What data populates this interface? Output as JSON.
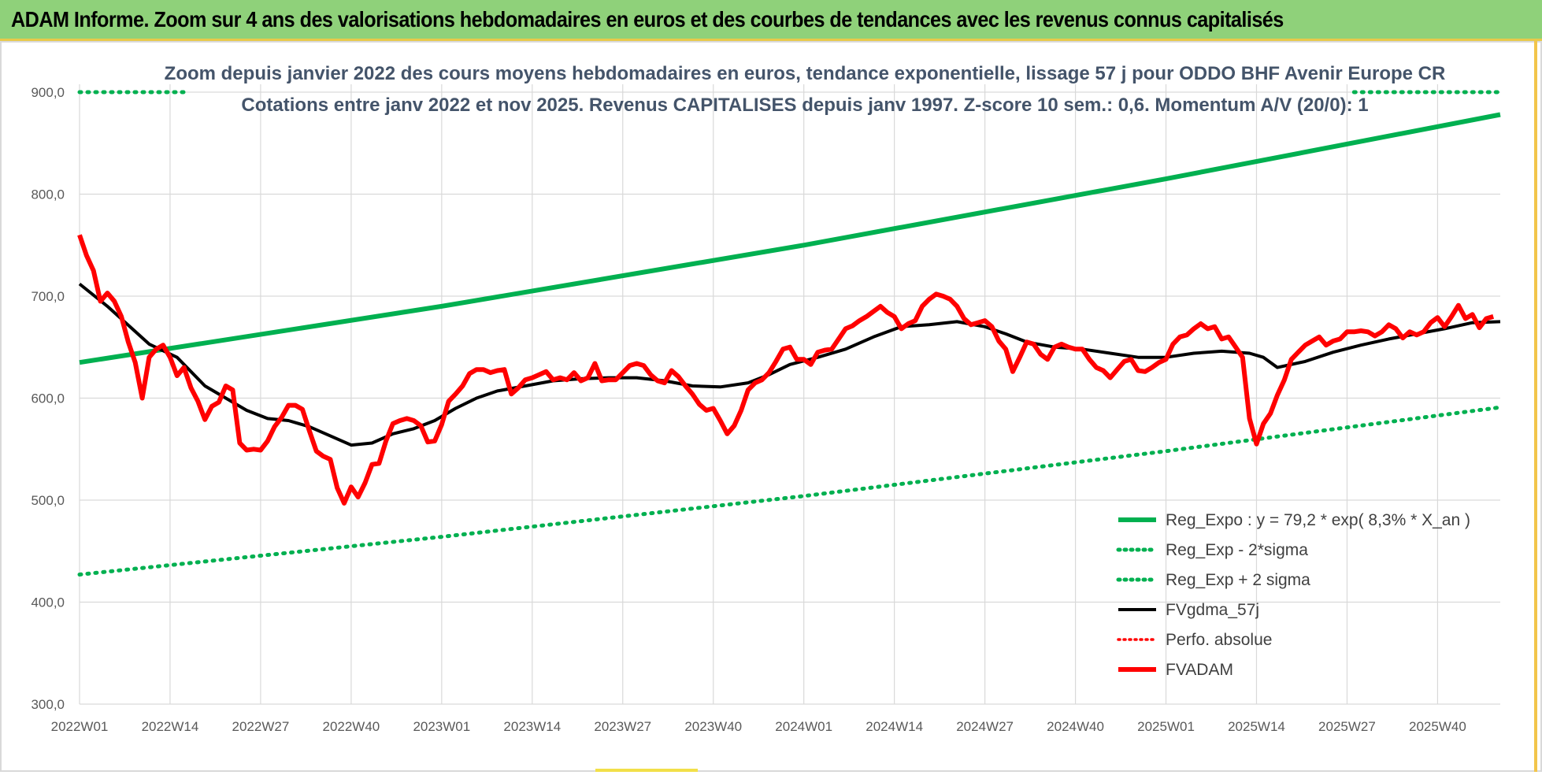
{
  "header": {
    "title": "ADAM Informe. Zoom sur 4 ans des valorisations hebdomadaires en euros et des courbes de tendances avec les revenus connus capitalisés"
  },
  "colors": {
    "banner": "#8fd17a",
    "trend": "#00b050",
    "price": "#ff0000",
    "average": "#000000",
    "grid": "#d9d9d9"
  },
  "chart_data": {
    "type": "line",
    "title_line1": "Zoom depuis janvier 2022 des cours moyens hebdomadaires en euros, tendance exponentielle, lissage 57 j pour ODDO BHF Avenir Europe CR",
    "title_line2": "Cotations entre janv 2022 et nov 2025. Revenus CAPITALISES depuis janv 1997. Z-score 10 sem.: 0,6. Momentum A/V (20/0): 1",
    "ylim": [
      300,
      900
    ],
    "ytick_labels": [
      "300,0",
      "400,0",
      "500,0",
      "600,0",
      "700,0",
      "800,0",
      "900,0"
    ],
    "ytick_values": [
      300,
      400,
      500,
      600,
      700,
      800,
      900
    ],
    "xtick_labels": [
      "2022W01",
      "2022W14",
      "2022W27",
      "2022W40",
      "2023W01",
      "2023W14",
      "2023W27",
      "2023W40",
      "2024W01",
      "2024W14",
      "2024W27",
      "2024W40",
      "2025W01",
      "2025W14",
      "2025W27",
      "2025W40"
    ],
    "xtick_weeks": [
      0,
      13,
      26,
      39,
      52,
      65,
      78,
      91,
      104,
      117,
      130,
      143,
      156,
      169,
      182,
      195
    ],
    "x_weeks_range": [
      0,
      204
    ],
    "series": [
      {
        "name": "Reg_Expo : y = 79,2 * exp( 8,3% *  X_an )",
        "style": "solid-thick",
        "color": "#00b050",
        "points": [
          [
            0,
            635
          ],
          [
            52,
            690
          ],
          [
            104,
            750
          ],
          [
            156,
            815
          ],
          [
            204,
            878
          ]
        ]
      },
      {
        "name": "Reg_Exp - 2*sigma",
        "style": "dotted",
        "color": "#00b050",
        "points": [
          [
            0,
            427
          ],
          [
            52,
            464
          ],
          [
            104,
            504
          ],
          [
            156,
            548
          ],
          [
            204,
            591
          ]
        ]
      },
      {
        "name": "Reg_Exp + 2 sigma",
        "style": "dotted",
        "color": "#00b050",
        "segments": [
          [
            [
              0,
              900
            ],
            [
              15,
              900
            ]
          ],
          [
            [
              183,
              900
            ],
            [
              204,
              900
            ]
          ]
        ]
      },
      {
        "name": "FVgdma_57j",
        "style": "solid",
        "color": "#000000",
        "points": [
          [
            0,
            712
          ],
          [
            4,
            690
          ],
          [
            10,
            653
          ],
          [
            14,
            640
          ],
          [
            18,
            612
          ],
          [
            21,
            600
          ],
          [
            24,
            588
          ],
          [
            27,
            580
          ],
          [
            30,
            578
          ],
          [
            33,
            572
          ],
          [
            36,
            563
          ],
          [
            39,
            554
          ],
          [
            42,
            556
          ],
          [
            45,
            565
          ],
          [
            48,
            570
          ],
          [
            51,
            578
          ],
          [
            54,
            590
          ],
          [
            57,
            600
          ],
          [
            60,
            607
          ],
          [
            64,
            612
          ],
          [
            68,
            617
          ],
          [
            72,
            619
          ],
          [
            76,
            620
          ],
          [
            80,
            620
          ],
          [
            84,
            617
          ],
          [
            88,
            612
          ],
          [
            92,
            611
          ],
          [
            96,
            615
          ],
          [
            99,
            623
          ],
          [
            102,
            633
          ],
          [
            106,
            640
          ],
          [
            110,
            648
          ],
          [
            114,
            660
          ],
          [
            118,
            670
          ],
          [
            122,
            672
          ],
          [
            126,
            675
          ],
          [
            130,
            670
          ],
          [
            133,
            663
          ],
          [
            136,
            655
          ],
          [
            140,
            650
          ],
          [
            144,
            648
          ],
          [
            148,
            644
          ],
          [
            152,
            640
          ],
          [
            156,
            640
          ],
          [
            160,
            644
          ],
          [
            164,
            646
          ],
          [
            168,
            644
          ],
          [
            170,
            640
          ],
          [
            172,
            630
          ],
          [
            176,
            636
          ],
          [
            180,
            645
          ],
          [
            184,
            652
          ],
          [
            188,
            658
          ],
          [
            192,
            663
          ],
          [
            196,
            668
          ],
          [
            200,
            674
          ],
          [
            204,
            675
          ]
        ]
      },
      {
        "name": "Perfo. absolue",
        "style": "dotted",
        "color": "#ff0000",
        "points": []
      },
      {
        "name": "FVADAM",
        "style": "solid-thick",
        "color": "#ff0000",
        "points": [
          [
            0,
            760
          ],
          [
            1,
            740
          ],
          [
            2,
            725
          ],
          [
            3,
            695
          ],
          [
            4,
            703
          ],
          [
            5,
            695
          ],
          [
            6,
            680
          ],
          [
            7,
            655
          ],
          [
            8,
            635
          ],
          [
            9,
            600
          ],
          [
            10,
            640
          ],
          [
            11,
            648
          ],
          [
            12,
            652
          ],
          [
            13,
            640
          ],
          [
            14,
            622
          ],
          [
            15,
            630
          ],
          [
            16,
            610
          ],
          [
            17,
            597
          ],
          [
            18,
            579
          ],
          [
            19,
            592
          ],
          [
            20,
            596
          ],
          [
            21,
            612
          ],
          [
            22,
            608
          ],
          [
            23,
            556
          ],
          [
            24,
            549
          ],
          [
            25,
            550
          ],
          [
            26,
            549
          ],
          [
            27,
            558
          ],
          [
            28,
            572
          ],
          [
            29,
            581
          ],
          [
            30,
            593
          ],
          [
            31,
            593
          ],
          [
            32,
            589
          ],
          [
            33,
            568
          ],
          [
            34,
            548
          ],
          [
            35,
            543
          ],
          [
            36,
            540
          ],
          [
            37,
            512
          ],
          [
            38,
            497
          ],
          [
            39,
            513
          ],
          [
            40,
            503
          ],
          [
            41,
            517
          ],
          [
            42,
            535
          ],
          [
            43,
            536
          ],
          [
            44,
            558
          ],
          [
            45,
            575
          ],
          [
            46,
            578
          ],
          [
            47,
            580
          ],
          [
            48,
            578
          ],
          [
            49,
            573
          ],
          [
            50,
            557
          ],
          [
            51,
            558
          ],
          [
            52,
            574
          ],
          [
            53,
            597
          ],
          [
            54,
            604
          ],
          [
            55,
            612
          ],
          [
            56,
            624
          ],
          [
            57,
            628
          ],
          [
            58,
            628
          ],
          [
            59,
            625
          ],
          [
            60,
            627
          ],
          [
            61,
            628
          ],
          [
            62,
            604
          ],
          [
            63,
            610
          ],
          [
            64,
            618
          ],
          [
            65,
            620
          ],
          [
            66,
            623
          ],
          [
            67,
            626
          ],
          [
            68,
            618
          ],
          [
            69,
            620
          ],
          [
            70,
            618
          ],
          [
            71,
            625
          ],
          [
            72,
            617
          ],
          [
            73,
            620
          ],
          [
            74,
            634
          ],
          [
            75,
            617
          ],
          [
            76,
            618
          ],
          [
            77,
            618
          ],
          [
            78,
            625
          ],
          [
            79,
            632
          ],
          [
            80,
            634
          ],
          [
            81,
            632
          ],
          [
            82,
            623
          ],
          [
            83,
            617
          ],
          [
            84,
            615
          ],
          [
            85,
            627
          ],
          [
            86,
            621
          ],
          [
            87,
            612
          ],
          [
            88,
            604
          ],
          [
            89,
            594
          ],
          [
            90,
            588
          ],
          [
            91,
            590
          ],
          [
            92,
            578
          ],
          [
            93,
            565
          ],
          [
            94,
            573
          ],
          [
            95,
            588
          ],
          [
            96,
            608
          ],
          [
            97,
            615
          ],
          [
            98,
            618
          ],
          [
            99,
            625
          ],
          [
            100,
            636
          ],
          [
            101,
            648
          ],
          [
            102,
            650
          ],
          [
            103,
            638
          ],
          [
            104,
            638
          ],
          [
            105,
            633
          ],
          [
            106,
            645
          ],
          [
            107,
            647
          ],
          [
            108,
            648
          ],
          [
            109,
            658
          ],
          [
            110,
            668
          ],
          [
            111,
            671
          ],
          [
            112,
            676
          ],
          [
            113,
            680
          ],
          [
            114,
            685
          ],
          [
            115,
            690
          ],
          [
            116,
            684
          ],
          [
            117,
            680
          ],
          [
            118,
            668
          ],
          [
            119,
            673
          ],
          [
            120,
            676
          ],
          [
            121,
            690
          ],
          [
            122,
            697
          ],
          [
            123,
            702
          ],
          [
            124,
            700
          ],
          [
            125,
            697
          ],
          [
            126,
            690
          ],
          [
            127,
            678
          ],
          [
            128,
            672
          ],
          [
            129,
            674
          ],
          [
            130,
            676
          ],
          [
            131,
            670
          ],
          [
            132,
            656
          ],
          [
            133,
            648
          ],
          [
            134,
            626
          ],
          [
            135,
            640
          ],
          [
            136,
            655
          ],
          [
            137,
            653
          ],
          [
            138,
            643
          ],
          [
            139,
            638
          ],
          [
            140,
            650
          ],
          [
            141,
            653
          ],
          [
            142,
            650
          ],
          [
            143,
            648
          ],
          [
            144,
            648
          ],
          [
            145,
            638
          ],
          [
            146,
            630
          ],
          [
            147,
            627
          ],
          [
            148,
            620
          ],
          [
            149,
            628
          ],
          [
            150,
            636
          ],
          [
            151,
            638
          ],
          [
            152,
            627
          ],
          [
            153,
            626
          ],
          [
            154,
            630
          ],
          [
            155,
            635
          ],
          [
            156,
            638
          ],
          [
            157,
            653
          ],
          [
            158,
            660
          ],
          [
            159,
            662
          ],
          [
            160,
            668
          ],
          [
            161,
            673
          ],
          [
            162,
            668
          ],
          [
            163,
            670
          ],
          [
            164,
            658
          ],
          [
            165,
            660
          ],
          [
            166,
            650
          ],
          [
            167,
            640
          ],
          [
            168,
            580
          ],
          [
            169,
            555
          ],
          [
            170,
            575
          ],
          [
            171,
            585
          ],
          [
            172,
            603
          ],
          [
            173,
            618
          ],
          [
            174,
            638
          ],
          [
            175,
            645
          ],
          [
            176,
            652
          ],
          [
            177,
            656
          ],
          [
            178,
            660
          ],
          [
            179,
            652
          ],
          [
            180,
            656
          ],
          [
            181,
            658
          ],
          [
            182,
            665
          ],
          [
            183,
            665
          ],
          [
            184,
            666
          ],
          [
            185,
            665
          ],
          [
            186,
            661
          ],
          [
            187,
            665
          ],
          [
            188,
            672
          ],
          [
            189,
            668
          ],
          [
            190,
            659
          ],
          [
            191,
            665
          ],
          [
            192,
            662
          ],
          [
            193,
            665
          ],
          [
            194,
            674
          ],
          [
            195,
            679
          ],
          [
            196,
            670
          ],
          [
            197,
            680
          ],
          [
            198,
            691
          ],
          [
            199,
            678
          ],
          [
            200,
            682
          ],
          [
            201,
            669
          ],
          [
            202,
            678
          ],
          [
            203,
            680
          ]
        ]
      }
    ]
  }
}
